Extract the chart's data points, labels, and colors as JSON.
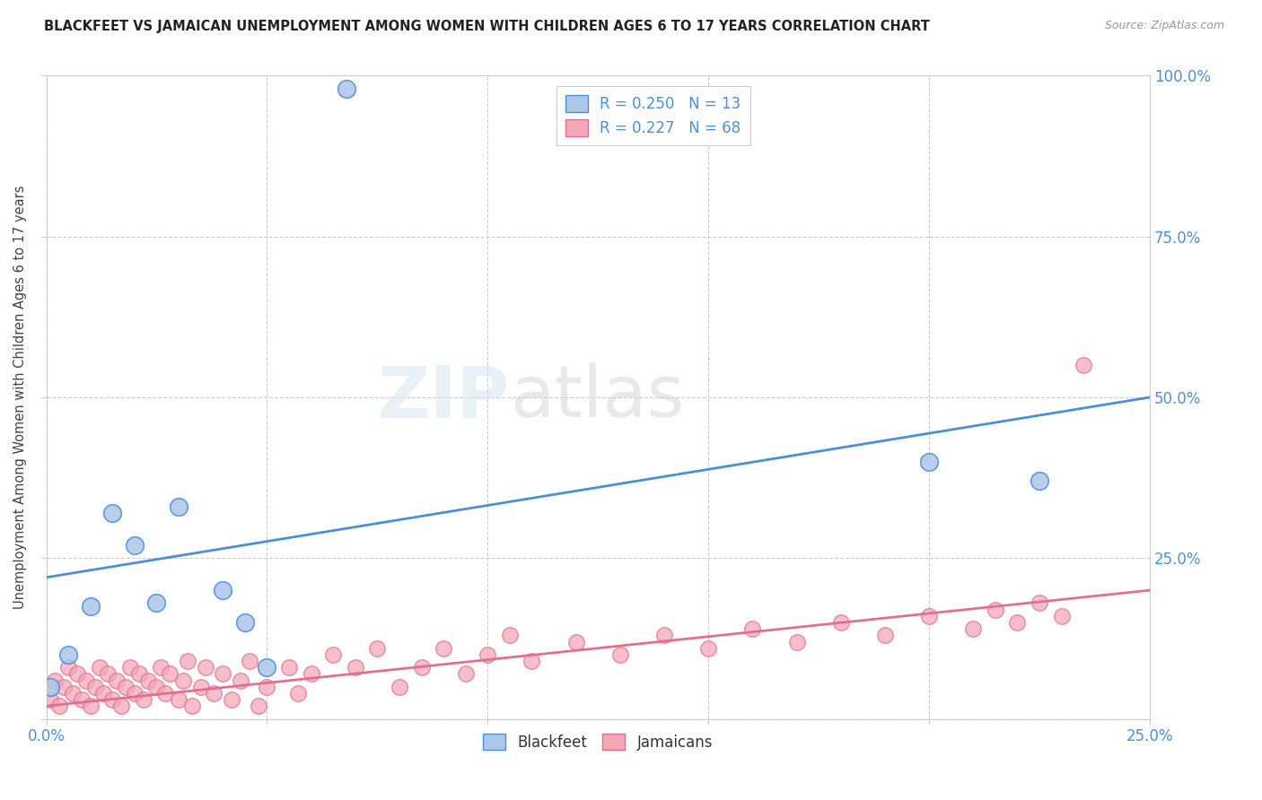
{
  "title": "BLACKFEET VS JAMAICAN UNEMPLOYMENT AMONG WOMEN WITH CHILDREN AGES 6 TO 17 YEARS CORRELATION CHART",
  "source": "Source: ZipAtlas.com",
  "ylabel": "Unemployment Among Women with Children Ages 6 to 17 years",
  "xlim": [
    0.0,
    0.25
  ],
  "ylim": [
    0.0,
    1.0
  ],
  "blackfeet_R": 0.25,
  "blackfeet_N": 13,
  "jamaican_R": 0.227,
  "jamaican_N": 68,
  "blackfeet_color": "#aec6e8",
  "jamaican_color": "#f4a7b9",
  "blackfeet_line_color": "#4a90d9",
  "jamaican_line_color": "#e07090",
  "background_color": "#ffffff",
  "grid_color": "#cccccc",
  "bf_line": [
    0.0,
    0.22,
    0.25,
    0.5
  ],
  "jam_line": [
    0.0,
    0.02,
    0.25,
    0.2
  ],
  "blackfeet_x": [
    0.001,
    0.005,
    0.01,
    0.015,
    0.02,
    0.025,
    0.03,
    0.04,
    0.045,
    0.05,
    0.068,
    0.2,
    0.225
  ],
  "blackfeet_y": [
    0.05,
    0.1,
    0.175,
    0.32,
    0.27,
    0.18,
    0.33,
    0.2,
    0.15,
    0.08,
    0.98,
    0.4,
    0.37
  ],
  "jamaican_x": [
    0.001,
    0.002,
    0.003,
    0.004,
    0.005,
    0.006,
    0.007,
    0.008,
    0.009,
    0.01,
    0.011,
    0.012,
    0.013,
    0.014,
    0.015,
    0.016,
    0.017,
    0.018,
    0.019,
    0.02,
    0.021,
    0.022,
    0.023,
    0.025,
    0.026,
    0.027,
    0.028,
    0.03,
    0.031,
    0.032,
    0.033,
    0.035,
    0.036,
    0.038,
    0.04,
    0.042,
    0.044,
    0.046,
    0.048,
    0.05,
    0.055,
    0.057,
    0.06,
    0.065,
    0.07,
    0.075,
    0.08,
    0.085,
    0.09,
    0.095,
    0.1,
    0.105,
    0.11,
    0.12,
    0.13,
    0.14,
    0.15,
    0.16,
    0.17,
    0.18,
    0.19,
    0.2,
    0.21,
    0.215,
    0.22,
    0.225,
    0.23,
    0.235
  ],
  "jamaican_y": [
    0.03,
    0.06,
    0.02,
    0.05,
    0.08,
    0.04,
    0.07,
    0.03,
    0.06,
    0.02,
    0.05,
    0.08,
    0.04,
    0.07,
    0.03,
    0.06,
    0.02,
    0.05,
    0.08,
    0.04,
    0.07,
    0.03,
    0.06,
    0.05,
    0.08,
    0.04,
    0.07,
    0.03,
    0.06,
    0.09,
    0.02,
    0.05,
    0.08,
    0.04,
    0.07,
    0.03,
    0.06,
    0.09,
    0.02,
    0.05,
    0.08,
    0.04,
    0.07,
    0.1,
    0.08,
    0.11,
    0.05,
    0.08,
    0.11,
    0.07,
    0.1,
    0.13,
    0.09,
    0.12,
    0.1,
    0.13,
    0.11,
    0.14,
    0.12,
    0.15,
    0.13,
    0.16,
    0.14,
    0.17,
    0.15,
    0.18,
    0.16,
    0.55
  ]
}
